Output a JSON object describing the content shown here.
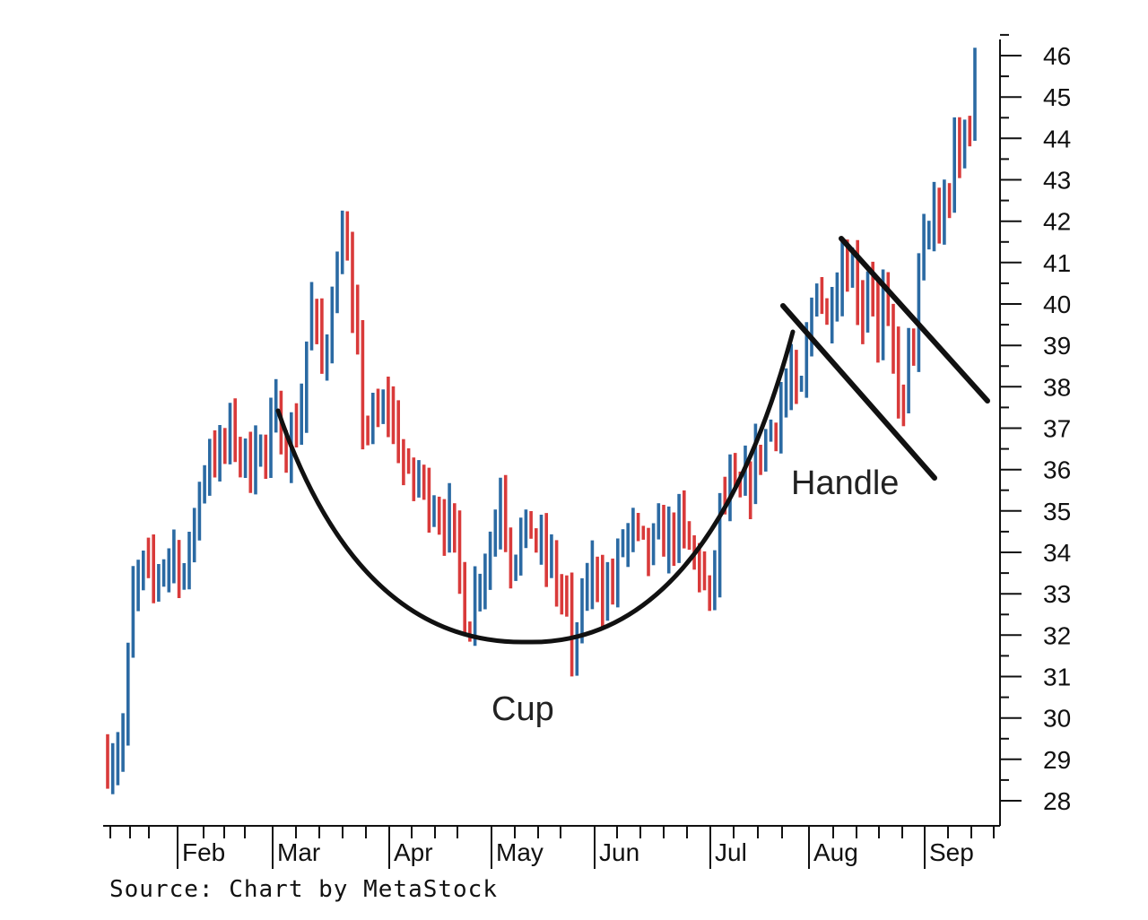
{
  "chart_data": {
    "type": "ohlc-bar",
    "source": "Source: Chart by MetaStock",
    "ylim": [
      28,
      46
    ],
    "y_ticks": [
      28,
      29,
      30,
      31,
      32,
      33,
      34,
      35,
      36,
      37,
      38,
      39,
      40,
      41,
      42,
      43,
      44,
      45,
      46
    ],
    "months": [
      "Feb",
      "Mar",
      "Apr",
      "May",
      "Jun",
      "Jul",
      "Aug",
      "Sep"
    ],
    "colors": {
      "up": "#2b6aa3",
      "down": "#d93a3a",
      "pattern": "#111111",
      "axis": "#111111"
    },
    "price_points": [
      [
        0,
        29.0
      ],
      [
        2,
        29.3
      ],
      [
        3,
        29.6
      ],
      [
        5,
        33.0
      ],
      [
        7,
        33.6
      ],
      [
        9,
        33.3
      ],
      [
        11,
        33.8
      ],
      [
        13,
        34.0
      ],
      [
        15,
        33.4
      ],
      [
        16,
        34.0
      ],
      [
        18,
        35.5
      ],
      [
        20,
        36.5
      ],
      [
        22,
        36.3
      ],
      [
        24,
        36.9
      ],
      [
        26,
        36.5
      ],
      [
        28,
        36.0
      ],
      [
        29,
        36.8
      ],
      [
        31,
        36.3
      ],
      [
        33,
        37.3
      ],
      [
        35,
        36.6
      ],
      [
        37,
        37.0
      ],
      [
        38,
        37.6
      ],
      [
        39,
        39.0
      ],
      [
        40,
        39.8
      ],
      [
        41,
        39.3
      ],
      [
        42,
        38.5
      ],
      [
        43,
        39.3
      ],
      [
        44,
        40.3
      ],
      [
        45,
        40.7
      ],
      [
        46,
        42.0
      ],
      [
        47,
        41.0
      ],
      [
        48,
        39.6
      ],
      [
        49,
        38.7
      ],
      [
        50,
        37.3
      ],
      [
        51,
        37.0
      ],
      [
        53,
        37.2
      ],
      [
        55,
        37.6
      ],
      [
        57,
        36.6
      ],
      [
        59,
        35.7
      ],
      [
        61,
        35.8
      ],
      [
        63,
        35.3
      ],
      [
        65,
        35.0
      ],
      [
        67,
        34.7
      ],
      [
        69,
        33.5
      ],
      [
        70,
        32.6
      ],
      [
        71,
        32.3
      ],
      [
        73,
        33.6
      ],
      [
        75,
        34.1
      ],
      [
        77,
        35.5
      ],
      [
        79,
        33.9
      ],
      [
        81,
        34.3
      ],
      [
        83,
        34.6
      ],
      [
        85,
        34.0
      ],
      [
        87,
        33.7
      ],
      [
        88,
        33.2
      ],
      [
        90,
        32.8
      ],
      [
        91,
        31.3
      ],
      [
        92,
        32.0
      ],
      [
        94,
        33.3
      ],
      [
        96,
        33.6
      ],
      [
        97,
        33.1
      ],
      [
        99,
        33.2
      ],
      [
        101,
        34.3
      ],
      [
        103,
        34.5
      ],
      [
        104,
        34.2
      ],
      [
        106,
        34.0
      ],
      [
        108,
        34.3
      ],
      [
        110,
        34.4
      ],
      [
        112,
        34.6
      ],
      [
        114,
        34.1
      ],
      [
        116,
        33.7
      ],
      [
        118,
        32.7
      ],
      [
        119,
        33.6
      ],
      [
        120,
        35.0
      ],
      [
        122,
        35.5
      ],
      [
        124,
        35.3
      ],
      [
        126,
        35.8
      ],
      [
        128,
        36.5
      ],
      [
        130,
        37.0
      ],
      [
        132,
        37.6
      ],
      [
        134,
        38.3
      ],
      [
        135,
        37.6
      ],
      [
        136,
        37.8
      ],
      [
        137,
        38.9
      ],
      [
        138,
        39.8
      ],
      [
        139,
        40.7
      ],
      [
        140,
        40.1
      ],
      [
        141,
        39.5
      ],
      [
        142,
        40.3
      ],
      [
        144,
        41.0
      ],
      [
        146,
        40.9
      ],
      [
        147,
        40.3
      ],
      [
        148,
        39.8
      ],
      [
        149,
        40.6
      ],
      [
        150,
        40.5
      ],
      [
        151,
        39.0
      ],
      [
        152,
        40.0
      ],
      [
        153,
        39.3
      ],
      [
        154,
        38.7
      ],
      [
        155,
        38.0
      ],
      [
        156,
        37.3
      ],
      [
        157,
        39.0
      ],
      [
        158,
        39.2
      ],
      [
        159,
        40.5
      ],
      [
        160,
        41.3
      ],
      [
        161,
        41.6
      ],
      [
        162,
        42.4
      ],
      [
        163,
        41.8
      ],
      [
        164,
        42.3
      ],
      [
        165,
        42.7
      ],
      [
        166,
        43.7
      ],
      [
        167,
        43.4
      ],
      [
        168,
        44.2
      ],
      [
        169,
        44.6
      ],
      [
        170,
        45.4
      ]
    ],
    "annotations": [
      {
        "text": "Cup",
        "type": "arc"
      },
      {
        "text": "Handle",
        "type": "channel"
      }
    ]
  }
}
